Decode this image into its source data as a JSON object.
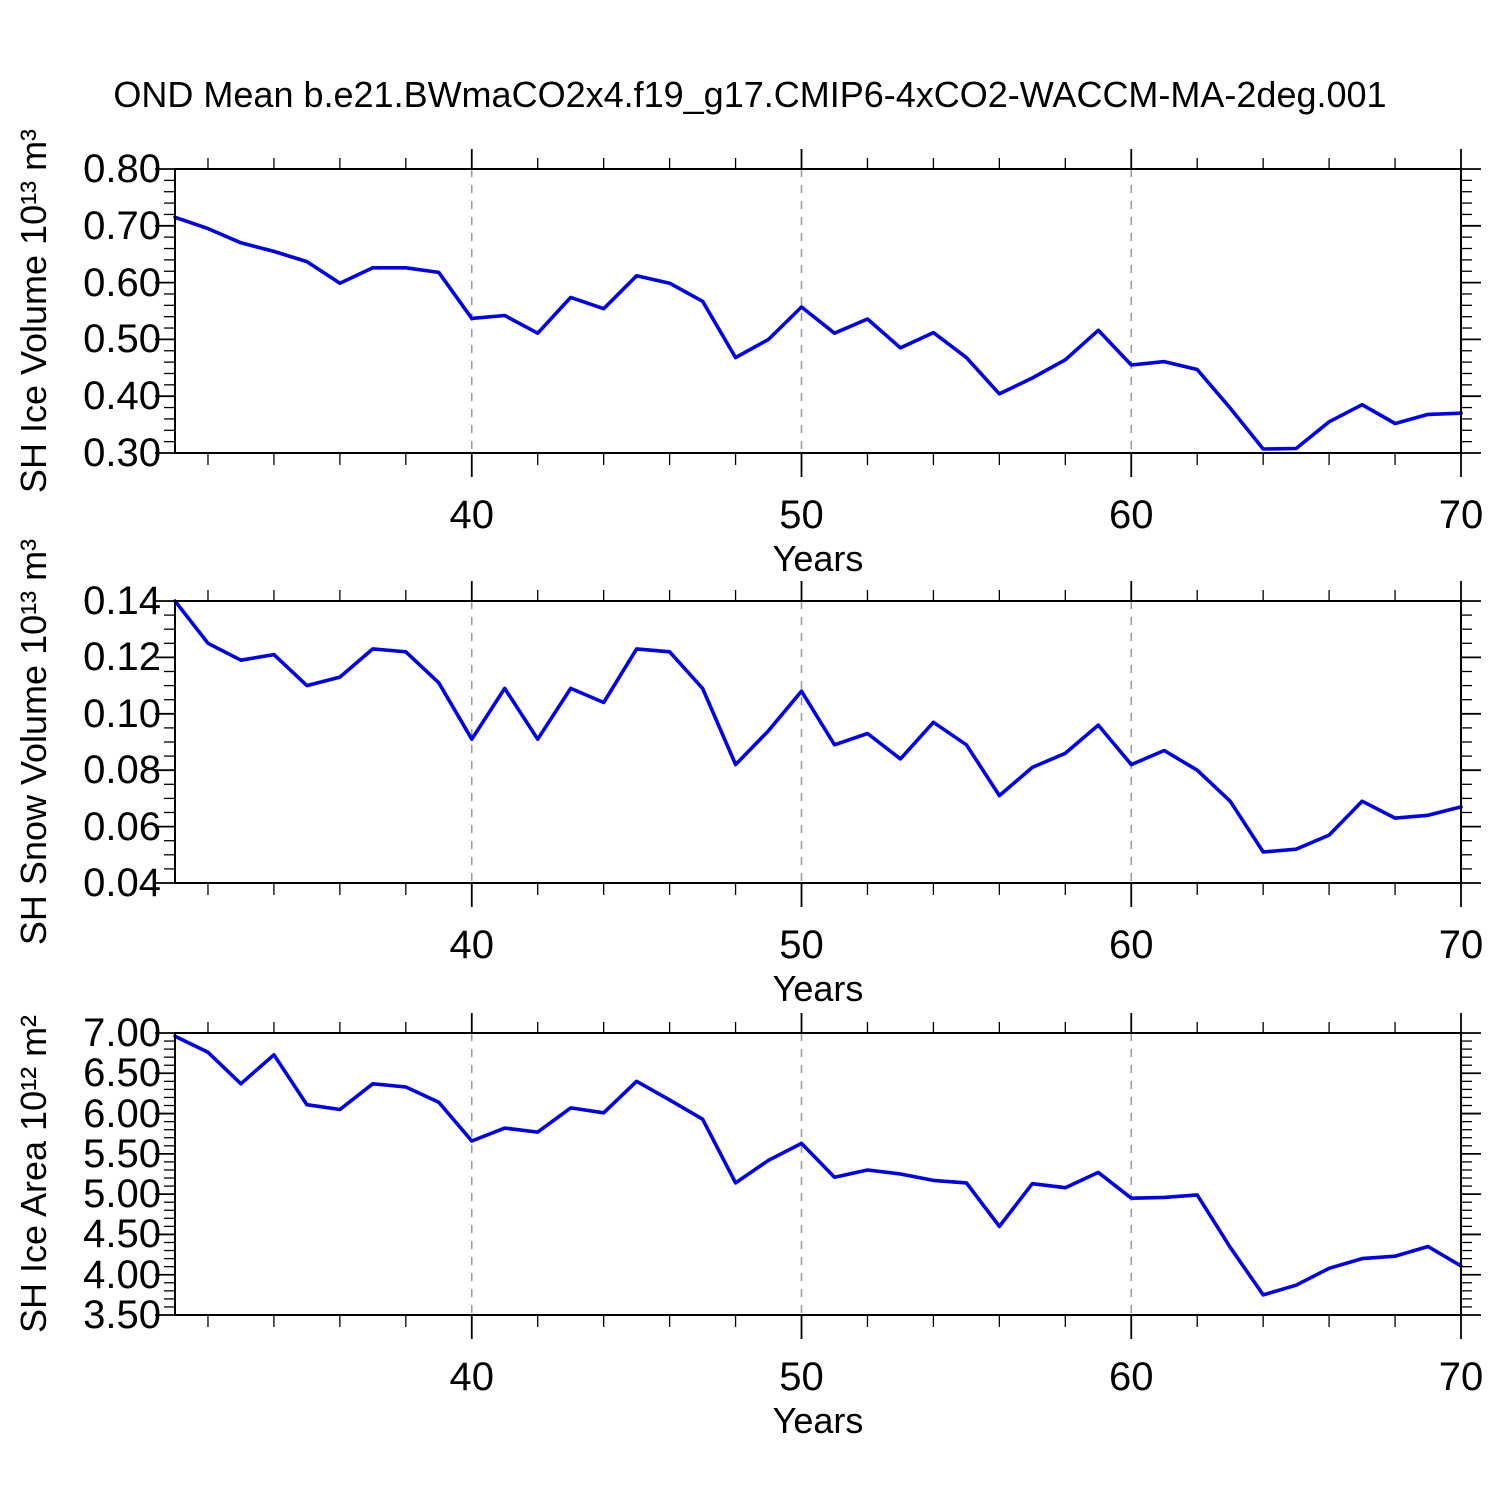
{
  "title": "OND Mean b.e21.BWmaCO2x4.f19_g17.CMIP6-4xCO2-WACCM-MA-2deg.001",
  "colors": {
    "line": "#0000EE",
    "axis": "#000000",
    "grid": "#999999",
    "background": "#FFFFFF"
  },
  "x_axis": {
    "label": "Years",
    "min": 31,
    "max": 70,
    "major_ticks": [
      40,
      50,
      60,
      70
    ],
    "major_tick_labels": [
      "40",
      "50",
      "60",
      "70"
    ],
    "minor_step": 2,
    "gridlines": [
      40,
      50,
      60
    ]
  },
  "chart_data": [
    {
      "type": "line",
      "title": "",
      "xlabel": "Years",
      "ylabel": "SH Ice Volume 10¹³ m³",
      "ylim": [
        0.3,
        0.8
      ],
      "ytick_values": [
        0.3,
        0.4,
        0.5,
        0.6,
        0.7,
        0.8
      ],
      "ytick_labels": [
        "0.30",
        "0.40",
        "0.50",
        "0.60",
        "0.70",
        "0.80"
      ],
      "yminor_step": 0.02,
      "grid": "vertical-dashed",
      "legend": "none",
      "x": [
        31,
        32,
        33,
        34,
        35,
        36,
        37,
        38,
        39,
        40,
        41,
        42,
        43,
        44,
        45,
        46,
        47,
        48,
        49,
        50,
        51,
        52,
        53,
        54,
        55,
        56,
        57,
        58,
        59,
        60,
        61,
        62,
        63,
        64,
        65,
        66,
        67,
        68,
        69,
        70
      ],
      "values": [
        0.715,
        0.695,
        0.67,
        0.655,
        0.637,
        0.599,
        0.626,
        0.626,
        0.618,
        0.537,
        0.542,
        0.511,
        0.574,
        0.554,
        0.612,
        0.599,
        0.567,
        0.468,
        0.5,
        0.557,
        0.511,
        0.536,
        0.485,
        0.512,
        0.468,
        0.404,
        0.432,
        0.464,
        0.516,
        0.455,
        0.461,
        0.447,
        0.379,
        0.307,
        0.308,
        0.355,
        0.385,
        0.352,
        0.368,
        0.37
      ]
    },
    {
      "type": "line",
      "title": "",
      "xlabel": "Years",
      "ylabel": "SH Snow Volume 10¹³ m³",
      "ylim": [
        0.04,
        0.14
      ],
      "ytick_values": [
        0.04,
        0.06,
        0.08,
        0.1,
        0.12,
        0.14
      ],
      "ytick_labels": [
        "0.04",
        "0.06",
        "0.08",
        "0.10",
        "0.12",
        "0.14"
      ],
      "yminor_step": 0.005,
      "grid": "vertical-dashed",
      "legend": "none",
      "x": [
        31,
        32,
        33,
        34,
        35,
        36,
        37,
        38,
        39,
        40,
        41,
        42,
        43,
        44,
        45,
        46,
        47,
        48,
        49,
        50,
        51,
        52,
        53,
        54,
        55,
        56,
        57,
        58,
        59,
        60,
        61,
        62,
        63,
        64,
        65,
        66,
        67,
        68,
        69,
        70
      ],
      "values": [
        0.14,
        0.125,
        0.119,
        0.121,
        0.11,
        0.113,
        0.123,
        0.122,
        0.111,
        0.091,
        0.109,
        0.091,
        0.109,
        0.104,
        0.123,
        0.122,
        0.109,
        0.082,
        0.094,
        0.108,
        0.089,
        0.093,
        0.084,
        0.097,
        0.089,
        0.071,
        0.081,
        0.086,
        0.096,
        0.082,
        0.087,
        0.08,
        0.069,
        0.051,
        0.052,
        0.057,
        0.069,
        0.063,
        0.064,
        0.067
      ]
    },
    {
      "type": "line",
      "title": "",
      "xlabel": "Years",
      "ylabel": "SH Ice Area 10¹² m²",
      "ylim": [
        3.5,
        7.0
      ],
      "ytick_values": [
        3.5,
        4.0,
        4.5,
        5.0,
        5.5,
        6.0,
        6.5,
        7.0
      ],
      "ytick_labels": [
        "3.50",
        "4.00",
        "4.50",
        "5.00",
        "5.50",
        "6.00",
        "6.50",
        "7.00"
      ],
      "yminor_step": 0.1,
      "grid": "vertical-dashed",
      "legend": "none",
      "x": [
        31,
        32,
        33,
        34,
        35,
        36,
        37,
        38,
        39,
        40,
        41,
        42,
        43,
        44,
        45,
        46,
        47,
        48,
        49,
        50,
        51,
        52,
        53,
        54,
        55,
        56,
        57,
        58,
        59,
        60,
        61,
        62,
        63,
        64,
        65,
        66,
        67,
        68,
        69,
        70
      ],
      "values": [
        6.96,
        6.76,
        6.37,
        6.73,
        6.11,
        6.05,
        6.37,
        6.33,
        6.14,
        5.66,
        5.82,
        5.77,
        6.07,
        6.01,
        6.4,
        6.17,
        5.93,
        5.14,
        5.42,
        5.63,
        5.21,
        5.3,
        5.25,
        5.17,
        5.14,
        4.6,
        5.13,
        5.08,
        5.27,
        4.95,
        4.96,
        4.99,
        4.34,
        3.75,
        3.87,
        4.08,
        4.2,
        4.23,
        4.35,
        4.11
      ]
    }
  ]
}
